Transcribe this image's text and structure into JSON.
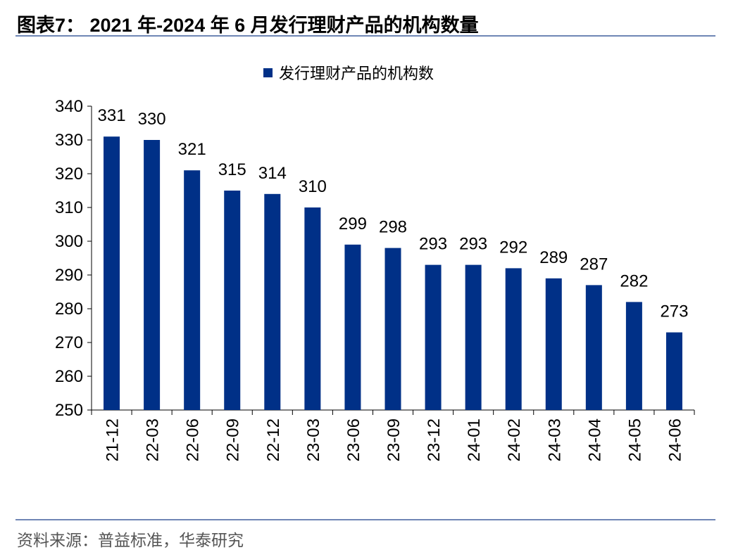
{
  "header": {
    "title": "图表7：  2021 年-2024 年 6 月发行理财产品的机构数量"
  },
  "footer": {
    "source": "资料来源：普益标准，华泰研究"
  },
  "colors": {
    "bar": "#003087",
    "rule": "#6f86b5"
  },
  "chart_data": {
    "type": "bar",
    "categories": [
      "21-12",
      "22-03",
      "22-06",
      "22-09",
      "22-12",
      "23-03",
      "23-06",
      "23-09",
      "23-12",
      "24-01",
      "24-02",
      "24-03",
      "24-04",
      "24-05",
      "24-06"
    ],
    "series": [
      {
        "name": "发行理财产品的机构数",
        "values": [
          331,
          330,
          321,
          315,
          314,
          310,
          299,
          298,
          293,
          293,
          292,
          289,
          287,
          282,
          273
        ]
      }
    ],
    "ylim": [
      250,
      340
    ],
    "yticks": [
      250,
      260,
      270,
      280,
      290,
      300,
      310,
      320,
      330,
      340
    ],
    "legend_position": "top-center",
    "grid": false,
    "data_labels": true,
    "xtick_rotation": "vertical"
  }
}
